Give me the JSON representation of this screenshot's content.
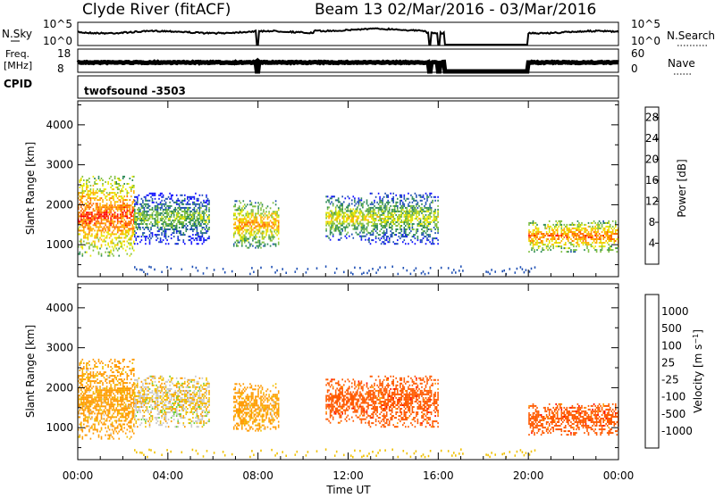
{
  "header": {
    "station": "Clyde River (fitACF)",
    "beam_date": "Beam 13  02/Mar/2016 - 03/Mar/2016"
  },
  "strips": {
    "nsky": {
      "label": "N.Sky",
      "ticks_left": [
        "10^5",
        "10^0"
      ],
      "ticks_right": [
        "10^5",
        "10^0"
      ],
      "right_label": "N.Search"
    },
    "freq": {
      "label_top": "Freq.",
      "label_unit": "[MHz]",
      "ticks_left": [
        "18",
        "8"
      ],
      "ticks_right": [
        "60",
        "0"
      ],
      "right_label": "Nave"
    },
    "cpid": {
      "label": "CPID",
      "value": "twofsound -3503"
    }
  },
  "x_axis": {
    "title": "Time UT",
    "ticks": [
      "00:00",
      "04:00",
      "08:00",
      "12:00",
      "16:00",
      "20:00",
      "00:00"
    ]
  },
  "chart_data": [
    {
      "type": "heatmap",
      "name": "power-panel",
      "ylabel": "Slant Range [km]",
      "yticks": [
        1000,
        2000,
        3000,
        4000
      ],
      "ylim": [
        200,
        4600
      ],
      "xlim_hours": [
        0,
        24
      ],
      "colorbar": {
        "label": "Power [dB]",
        "ticks": [
          4,
          8,
          12,
          16,
          20,
          24,
          28
        ],
        "range": [
          0,
          30
        ],
        "colors": [
          "#1010ff",
          "#1e4fb4",
          "#2e8b57",
          "#7fbf3f",
          "#e6e600",
          "#ffb000",
          "#ff6a00",
          "#ff0000"
        ]
      },
      "echo_regions": [
        {
          "t_start": 0.0,
          "t_end": 2.5,
          "r_min": 700,
          "r_max": 2700,
          "power_db": 26
        },
        {
          "t_start": 2.5,
          "t_end": 5.8,
          "r_min": 1000,
          "r_max": 2300,
          "power_db": 14
        },
        {
          "t_start": 6.9,
          "t_end": 8.9,
          "r_min": 900,
          "r_max": 2100,
          "power_db": 22
        },
        {
          "t_start": 11.0,
          "t_end": 12.9,
          "r_min": 1100,
          "r_max": 2200,
          "power_db": 18
        },
        {
          "t_start": 12.9,
          "t_end": 16.0,
          "r_min": 1000,
          "r_max": 2300,
          "power_db": 16
        },
        {
          "t_start": 20.0,
          "t_end": 24.0,
          "r_min": 800,
          "r_max": 1600,
          "power_db": 24
        }
      ]
    },
    {
      "type": "heatmap",
      "name": "velocity-panel",
      "ylabel": "Slant Range [km]",
      "yticks": [
        1000,
        2000,
        3000,
        4000
      ],
      "ylim": [
        200,
        4600
      ],
      "xlim_hours": [
        0,
        24
      ],
      "colorbar": {
        "label": "Velocity [m s^-1]",
        "ticks": [
          "1000",
          "500",
          "100",
          "25",
          "-25",
          "-100",
          "-500",
          "-1000"
        ],
        "colors": [
          "#1e3fd0",
          "#2f6fb0",
          "#3a9a5a",
          "#6ccf3a",
          "#c8c8c8",
          "#f0c000",
          "#ff9a00",
          "#ff5a00",
          "#ff0000"
        ]
      },
      "echo_regions": [
        {
          "t_start": 0.0,
          "t_end": 2.5,
          "r_min": 700,
          "r_max": 2700,
          "velocity": -100
        },
        {
          "t_start": 2.5,
          "t_end": 5.8,
          "r_min": 1000,
          "r_max": 2300,
          "velocity": -25
        },
        {
          "t_start": 6.9,
          "t_end": 8.9,
          "r_min": 900,
          "r_max": 2100,
          "velocity": -100
        },
        {
          "t_start": 11.0,
          "t_end": 12.9,
          "r_min": 1100,
          "r_max": 2200,
          "velocity": -500
        },
        {
          "t_start": 12.9,
          "t_end": 16.0,
          "r_min": 1000,
          "r_max": 2300,
          "velocity": -500
        },
        {
          "t_start": 20.0,
          "t_end": 24.0,
          "r_min": 800,
          "r_max": 1600,
          "velocity": -500
        }
      ]
    }
  ]
}
